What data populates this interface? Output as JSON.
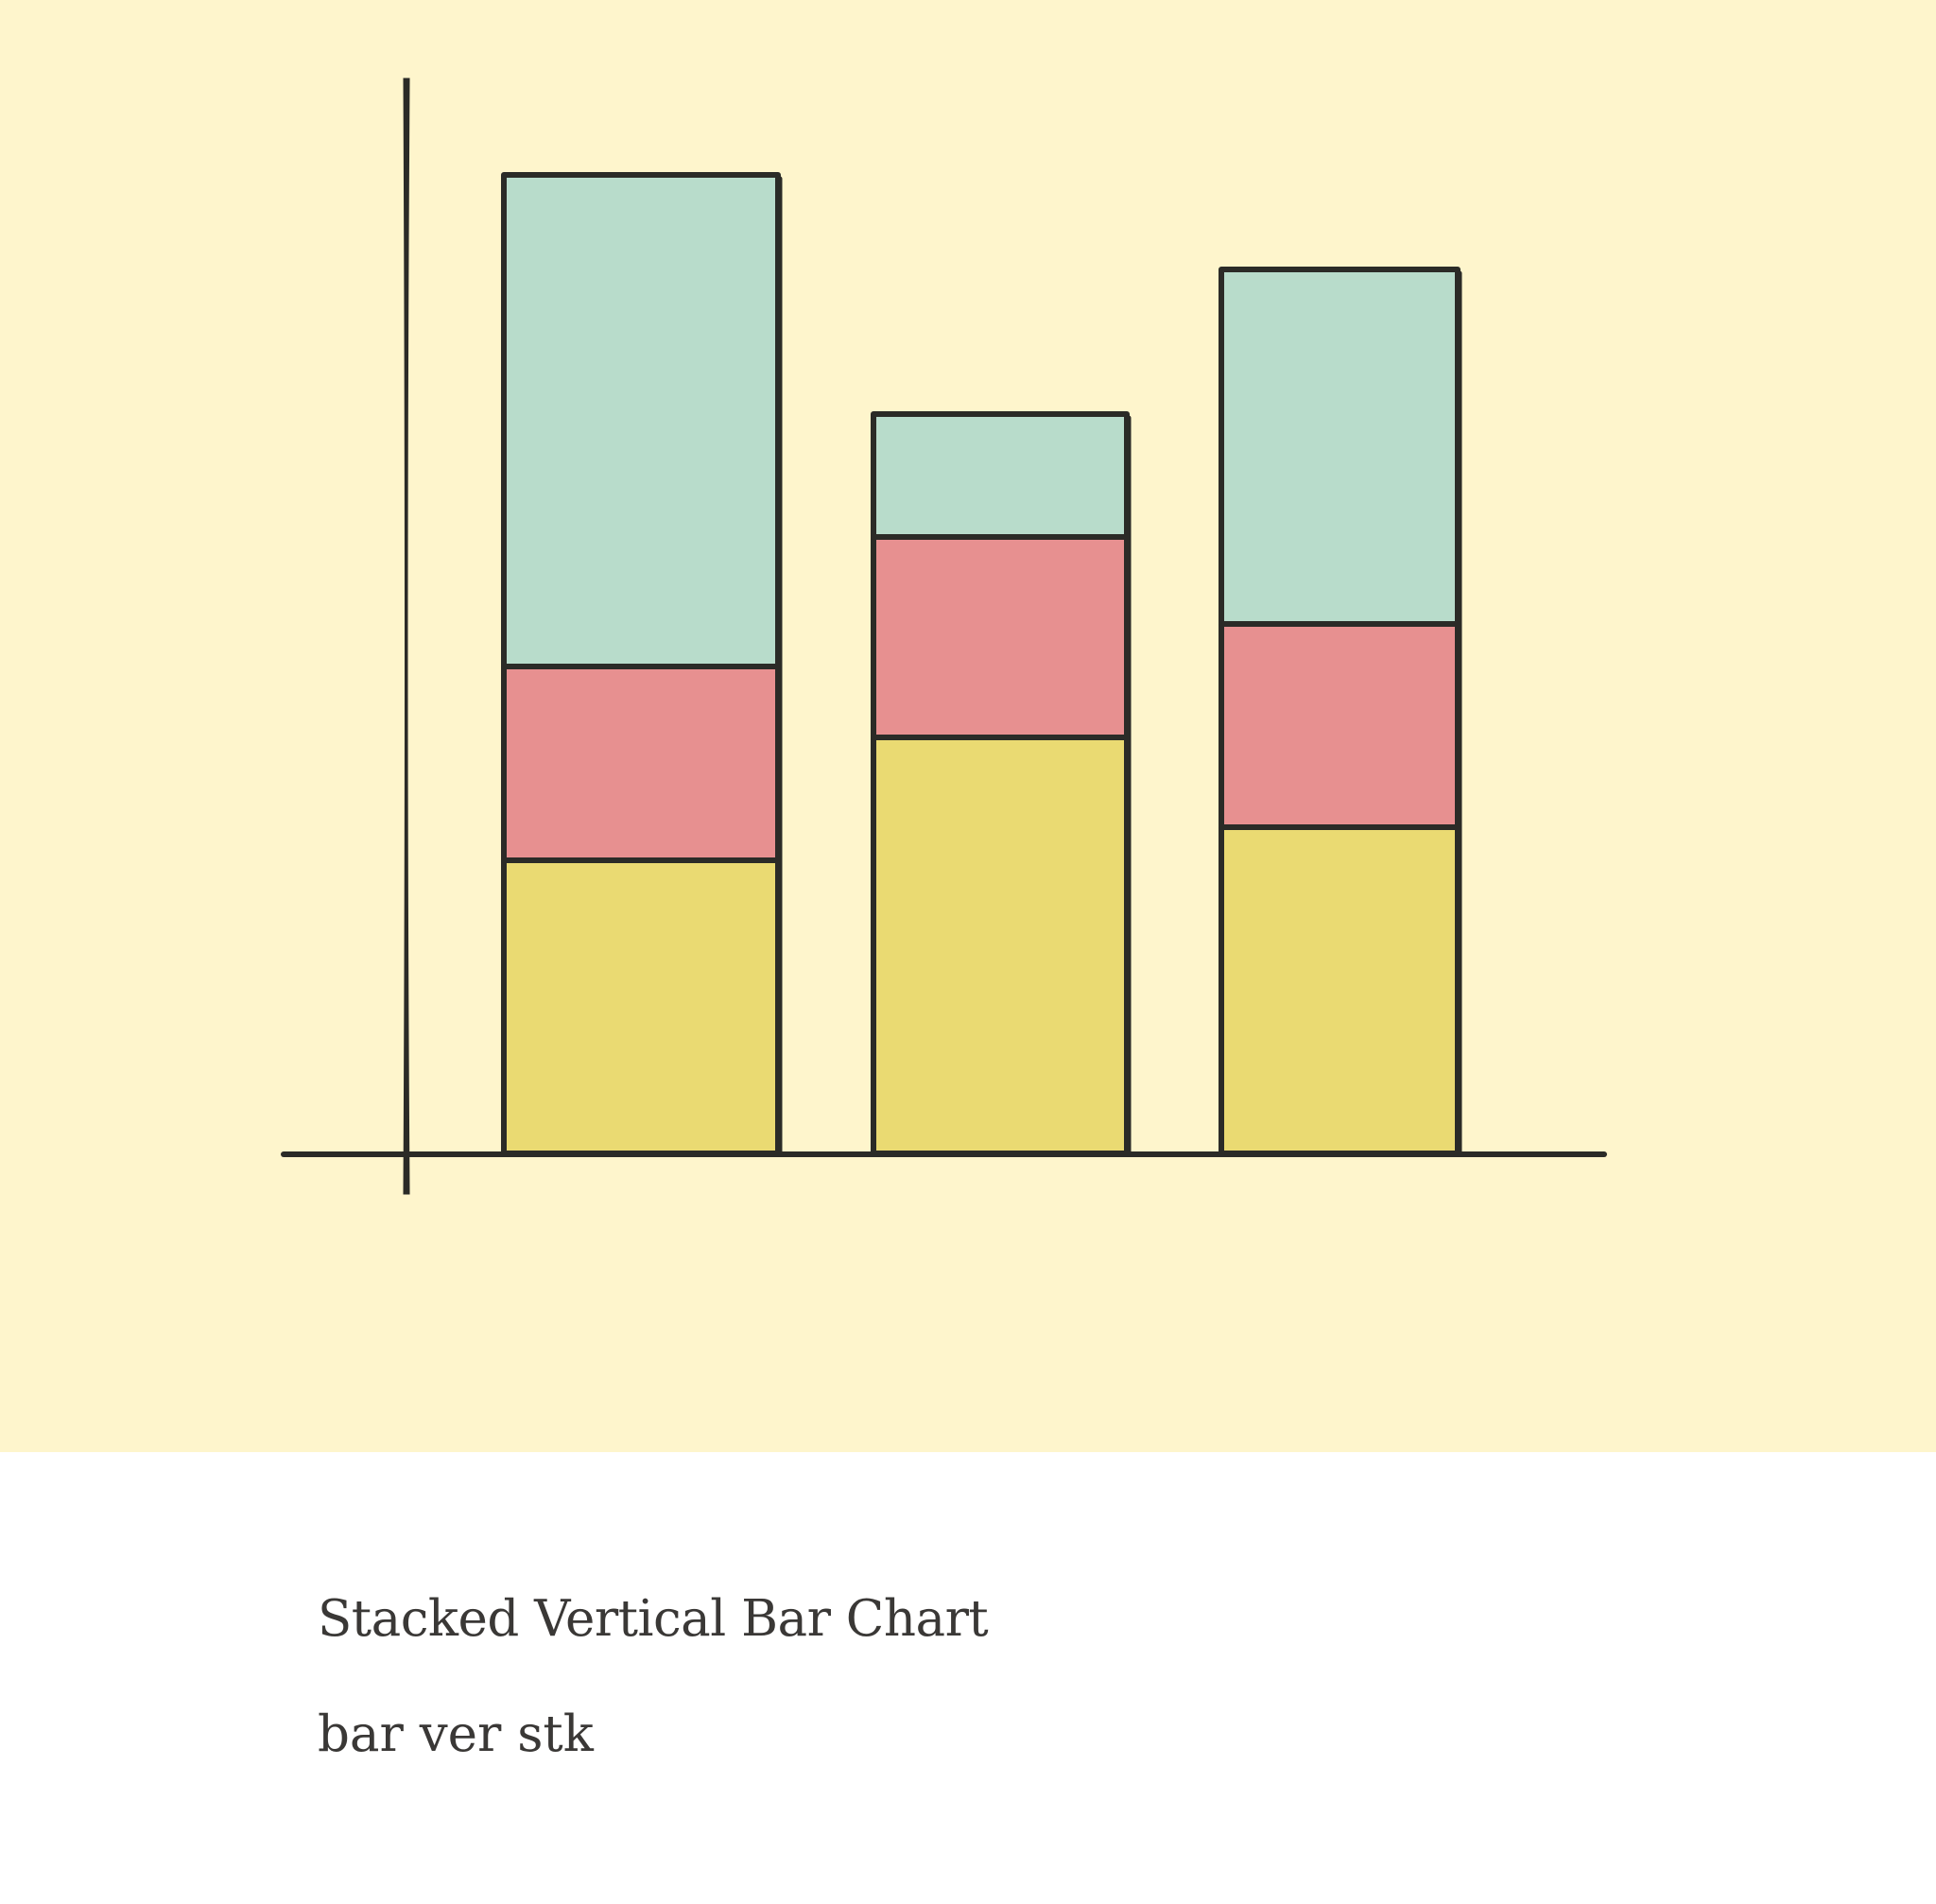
{
  "illustration": {
    "background_color": "#fef5cc",
    "outline_color": "#2b2b27",
    "segment_colors": [
      "#eada72",
      "#e79090",
      "#b8dccb"
    ],
    "bars": [
      {
        "segments": [
          310,
          205,
          520
        ]
      },
      {
        "segments": [
          440,
          212,
          130
        ]
      },
      {
        "segments": [
          345,
          215,
          375
        ]
      }
    ]
  },
  "caption": {
    "title": "Stacked Vertical Bar Chart",
    "tags": "bar ver stk"
  }
}
